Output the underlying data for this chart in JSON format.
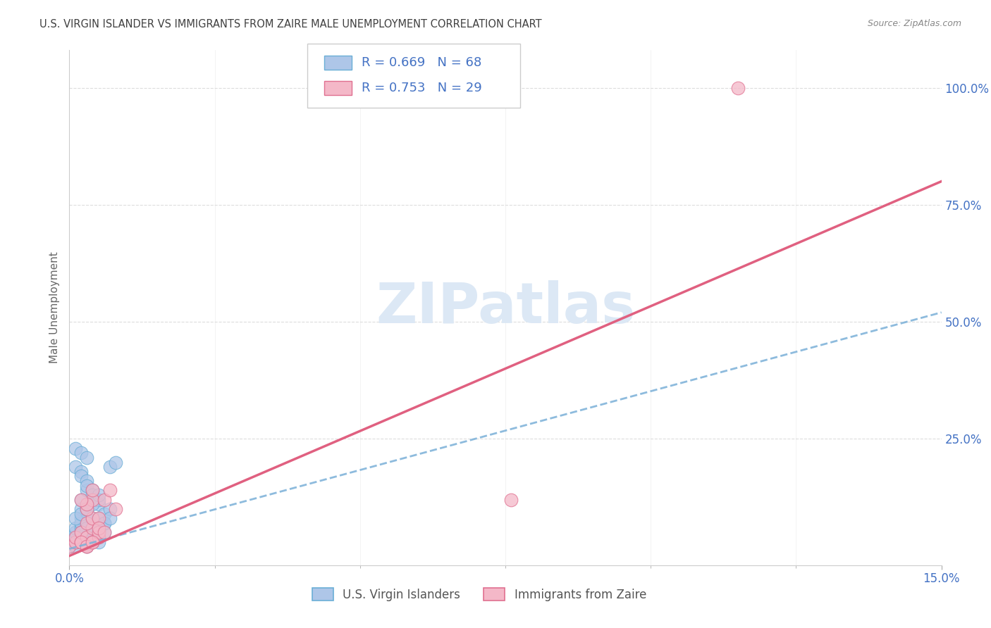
{
  "title": "U.S. VIRGIN ISLANDER VS IMMIGRANTS FROM ZAIRE MALE UNEMPLOYMENT CORRELATION CHART",
  "source": "Source: ZipAtlas.com",
  "ylabel": "Male Unemployment",
  "xlim": [
    0,
    0.15
  ],
  "ylim": [
    -0.02,
    1.08
  ],
  "xtick_positions": [
    0.0,
    0.15
  ],
  "xtick_labels": [
    "0.0%",
    "15.0%"
  ],
  "ytick_positions": [
    0.25,
    0.5,
    0.75,
    1.0
  ],
  "ytick_labels": [
    "25.0%",
    "50.0%",
    "75.0%",
    "100.0%"
  ],
  "series1_name": "U.S. Virgin Islanders",
  "series1_color": "#aec6e8",
  "series1_edge": "#6aaed6",
  "series1_R": 0.669,
  "series1_N": 68,
  "series2_name": "Immigrants from Zaire",
  "series2_color": "#f4b8c8",
  "series2_edge": "#e07090",
  "series2_R": 0.753,
  "series2_N": 29,
  "legend_color": "#4472c4",
  "background_color": "#ffffff",
  "grid_color": "#dddddd",
  "title_color": "#404040",
  "axis_label_color": "#4472c4",
  "watermark_color": "#dce8f5",
  "line1_color": "#7ab0d8",
  "line2_color": "#e06080",
  "series1_x": [
    0.0,
    0.0,
    0.0,
    0.001,
    0.001,
    0.001,
    0.001,
    0.001,
    0.002,
    0.002,
    0.002,
    0.002,
    0.002,
    0.002,
    0.002,
    0.002,
    0.003,
    0.003,
    0.003,
    0.003,
    0.003,
    0.003,
    0.003,
    0.004,
    0.004,
    0.004,
    0.004,
    0.004,
    0.005,
    0.005,
    0.005,
    0.005,
    0.006,
    0.006,
    0.006,
    0.007,
    0.007,
    0.008,
    0.001,
    0.002,
    0.002,
    0.003,
    0.003,
    0.004,
    0.004,
    0.005,
    0.001,
    0.002,
    0.003,
    0.002,
    0.003,
    0.004,
    0.002,
    0.003,
    0.001,
    0.002,
    0.003,
    0.004,
    0.005,
    0.003,
    0.004,
    0.002,
    0.005,
    0.003,
    0.002,
    0.004,
    0.006,
    0.007
  ],
  "series1_y": [
    0.02,
    0.03,
    0.04,
    0.02,
    0.03,
    0.04,
    0.05,
    0.06,
    0.03,
    0.04,
    0.05,
    0.06,
    0.07,
    0.08,
    0.1,
    0.12,
    0.04,
    0.05,
    0.06,
    0.07,
    0.08,
    0.1,
    0.14,
    0.05,
    0.06,
    0.07,
    0.08,
    0.12,
    0.04,
    0.06,
    0.08,
    0.11,
    0.05,
    0.07,
    0.09,
    0.1,
    0.19,
    0.2,
    0.19,
    0.18,
    0.17,
    0.16,
    0.15,
    0.14,
    0.13,
    0.12,
    0.23,
    0.22,
    0.21,
    0.07,
    0.06,
    0.05,
    0.04,
    0.03,
    0.08,
    0.09,
    0.1,
    0.11,
    0.13,
    0.02,
    0.03,
    0.04,
    0.03,
    0.04,
    0.05,
    0.06,
    0.07,
    0.08
  ],
  "series2_x": [
    0.0,
    0.001,
    0.001,
    0.002,
    0.002,
    0.003,
    0.003,
    0.004,
    0.004,
    0.005,
    0.003,
    0.004,
    0.005,
    0.003,
    0.004,
    0.005,
    0.002,
    0.003,
    0.004,
    0.002,
    0.005,
    0.003,
    0.004,
    0.006,
    0.006,
    0.007,
    0.008,
    0.076,
    0.115
  ],
  "series2_y": [
    0.02,
    0.03,
    0.04,
    0.03,
    0.05,
    0.02,
    0.04,
    0.03,
    0.06,
    0.04,
    0.07,
    0.08,
    0.05,
    0.1,
    0.12,
    0.08,
    0.03,
    0.11,
    0.14,
    0.12,
    0.06,
    0.02,
    0.03,
    0.05,
    0.12,
    0.14,
    0.1,
    0.12,
    1.0
  ],
  "line1_x0": 0.0,
  "line1_x1": 0.15,
  "line1_y0": 0.015,
  "line1_y1": 0.52,
  "line2_x0": 0.0,
  "line2_x1": 0.15,
  "line2_y0": 0.0,
  "line2_y1": 0.8
}
